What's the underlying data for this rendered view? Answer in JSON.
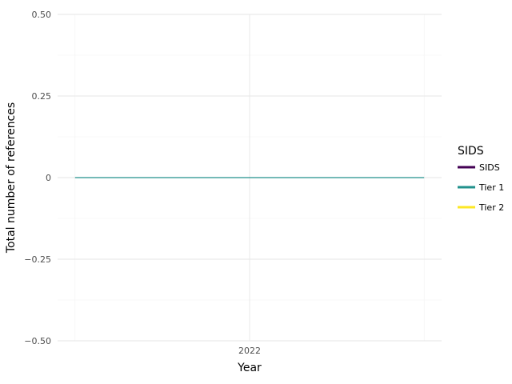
{
  "chart_data": {
    "type": "line",
    "x": [
      2021.5,
      2022,
      2022.5
    ],
    "x_ticks": [
      2022
    ],
    "x_tick_labels": [
      "2022"
    ],
    "xlim": [
      2021.45,
      2022.55
    ],
    "ylim": [
      -0.5,
      0.5
    ],
    "y_ticks": [
      -0.5,
      -0.25,
      0,
      0.25,
      0.5
    ],
    "y_tick_labels": [
      "−0.50",
      "−0.25",
      "0",
      "0.25",
      "0.50"
    ],
    "xlabel": "Year",
    "ylabel": "Total number of references",
    "grid": true,
    "legend": {
      "title": "SIDS",
      "placement": "right",
      "items": [
        {
          "name": "SIDS",
          "color": "#440154"
        },
        {
          "name": "Tier 1",
          "color": "#21918c"
        },
        {
          "name": "Tier 2",
          "color": "#fde725"
        }
      ]
    },
    "series": [
      {
        "name": "Tier 1",
        "color": "#21918c",
        "values": [
          0,
          0,
          0
        ]
      }
    ]
  }
}
